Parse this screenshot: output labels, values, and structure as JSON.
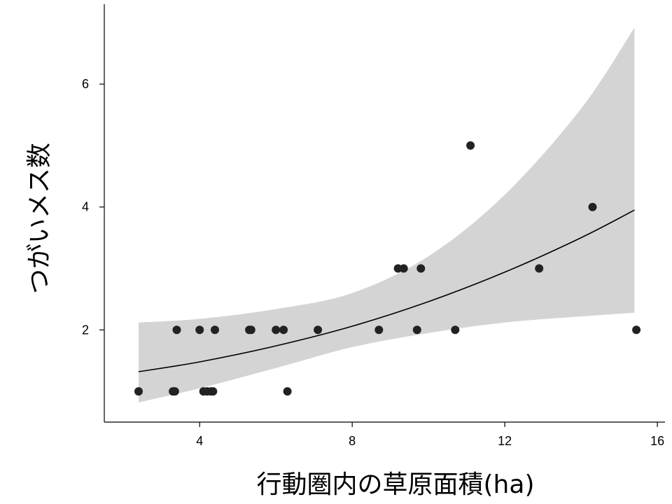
{
  "chart_data": {
    "type": "scatter",
    "title": "",
    "xlabel": "行動圏内の草原面積(ha)",
    "ylabel": "つがいメス数",
    "xlim": [
      1.5,
      16.2
    ],
    "ylim": [
      0.5,
      7.3
    ],
    "x_ticks": [
      "4",
      "8",
      "12",
      "16"
    ],
    "y_ticks": [
      "2",
      "4",
      "6"
    ],
    "grid": false,
    "legend": "none",
    "colors": {
      "points": "#222222",
      "fit_line": "#000000",
      "band": "#d4d4d4"
    },
    "series": [
      {
        "type": "scatter",
        "points": [
          {
            "x": 2.4,
            "y": 1
          },
          {
            "x": 3.3,
            "y": 1
          },
          {
            "x": 3.35,
            "y": 1
          },
          {
            "x": 4.1,
            "y": 1
          },
          {
            "x": 4.2,
            "y": 1
          },
          {
            "x": 4.3,
            "y": 1
          },
          {
            "x": 4.35,
            "y": 1
          },
          {
            "x": 6.3,
            "y": 1
          },
          {
            "x": 3.4,
            "y": 2
          },
          {
            "x": 4.0,
            "y": 2
          },
          {
            "x": 4.4,
            "y": 2
          },
          {
            "x": 5.3,
            "y": 2
          },
          {
            "x": 5.35,
            "y": 2
          },
          {
            "x": 6.0,
            "y": 2
          },
          {
            "x": 6.2,
            "y": 2
          },
          {
            "x": 7.1,
            "y": 2
          },
          {
            "x": 8.7,
            "y": 2
          },
          {
            "x": 9.7,
            "y": 2
          },
          {
            "x": 10.7,
            "y": 2
          },
          {
            "x": 15.45,
            "y": 2
          },
          {
            "x": 9.2,
            "y": 3
          },
          {
            "x": 9.35,
            "y": 3
          },
          {
            "x": 9.8,
            "y": 3
          },
          {
            "x": 12.9,
            "y": 3
          },
          {
            "x": 14.3,
            "y": 4
          },
          {
            "x": 11.1,
            "y": 5
          }
        ]
      },
      {
        "type": "line",
        "x": [
          2.4,
          4.0,
          6.0,
          8.0,
          10.0,
          12.0,
          14.0,
          15.4
        ],
        "y": [
          1.32,
          1.48,
          1.74,
          2.06,
          2.46,
          2.94,
          3.5,
          3.95
        ]
      },
      {
        "type": "area",
        "x": [
          2.4,
          4.0,
          6.0,
          8.0,
          10.0,
          12.0,
          14.0,
          15.4
        ],
        "lower": [
          0.82,
          1.05,
          1.38,
          1.72,
          1.95,
          2.12,
          2.22,
          2.28
        ],
        "upper": [
          2.12,
          2.18,
          2.34,
          2.6,
          3.2,
          4.2,
          5.6,
          6.92
        ]
      }
    ]
  }
}
